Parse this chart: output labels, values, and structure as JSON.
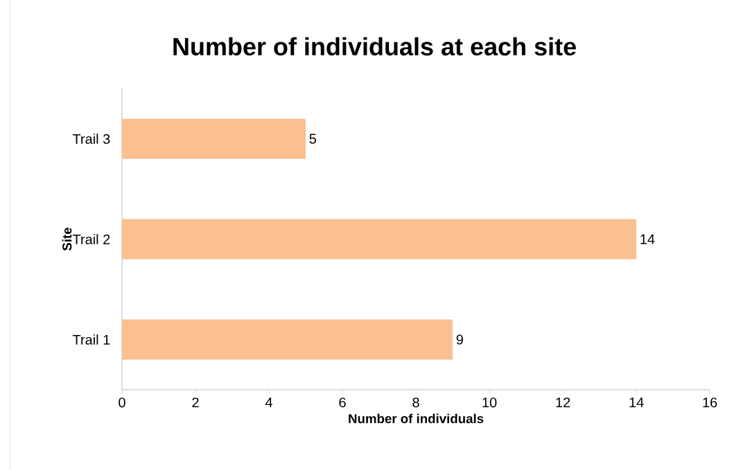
{
  "chart_data": {
    "type": "bar",
    "orientation": "horizontal",
    "title": "Number of individuals at each site",
    "xlabel": "Number of individuals",
    "ylabel": "Site",
    "categories": [
      "Trail 3",
      "Trail 2",
      "Trail 1"
    ],
    "values": [
      5,
      14,
      9
    ],
    "color": "#fac090",
    "data_labels": true,
    "xlim": [
      0,
      16
    ],
    "xticks": [
      0,
      2,
      4,
      6,
      8,
      10,
      12,
      14,
      16
    ]
  }
}
